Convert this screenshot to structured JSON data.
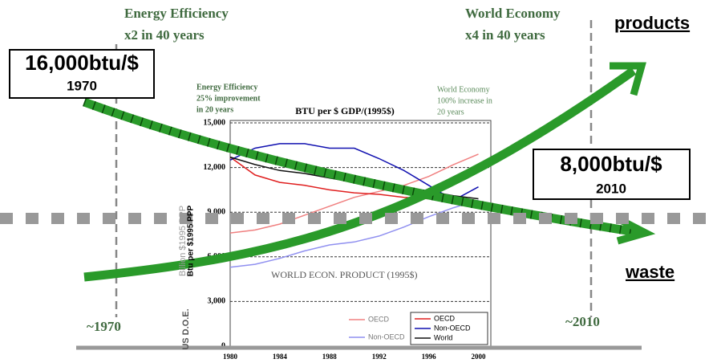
{
  "chart_data": {
    "type": "line",
    "title": "BTU per $ GDP/(1995$)",
    "x": [
      1980,
      1982,
      1984,
      1986,
      1988,
      1990,
      1992,
      1994,
      1996,
      1998,
      2000
    ],
    "xlim": [
      1980,
      2001
    ],
    "xticks": [
      1980,
      1984,
      1988,
      1992,
      1996,
      2000
    ],
    "ylim": [
      0,
      15000
    ],
    "yticks": [
      0,
      {
        "value": 3000,
        "label": "3,000"
      },
      {
        "value": 6000,
        "label": "6,000"
      },
      {
        "value": 9000,
        "label": "9,000"
      },
      {
        "value": 12000,
        "label": "12,000"
      },
      {
        "value": 15000,
        "label": "15,000"
      }
    ],
    "grid": true,
    "series": [
      {
        "name": "OECD",
        "color": "#f08080",
        "values": [
          7600,
          7800,
          8200,
          8800,
          9400,
          10000,
          10400,
          10800,
          11400,
          12200,
          12900
        ]
      },
      {
        "name": "Non-OECD",
        "color": "#9090f0",
        "values": [
          5300,
          5500,
          5900,
          6400,
          6800,
          7000,
          7400,
          8000,
          8700,
          9300,
          9800
        ]
      },
      {
        "name": "OECD",
        "color": "#e02020",
        "values": [
          12700,
          11500,
          11000,
          10800,
          10500,
          10300,
          10200,
          10000,
          9900,
          9700,
          9500
        ]
      },
      {
        "name": "Non-OECD",
        "color": "#1010b0",
        "values": [
          12500,
          13300,
          13600,
          13600,
          13300,
          13300,
          12600,
          11800,
          10800,
          9800,
          10700
        ]
      },
      {
        "name": "World",
        "color": "#111111",
        "values": [
          12700,
          12200,
          11800,
          11600,
          11300,
          11000,
          10800,
          10600,
          10400,
          10100,
          9900
        ]
      }
    ],
    "ylabel": "Billion $1995 PPP",
    "ylabel2": "Btu per $1995 PPP",
    "source": "US D.O.E.",
    "annotations": [
      "Energy Efficiency",
      "25% improvement",
      "in 20 years",
      "World Economy",
      "100% increase in",
      "20 years",
      "WORLD ECON. PRODUCT (1995$)"
    ]
  },
  "overlay": {
    "efficiency": [
      "Energy Efficiency",
      "x2 in 40 years"
    ],
    "economy": [
      "World Economy",
      "x4 in 40 years"
    ],
    "products": "products",
    "waste": "waste",
    "start": {
      "value": "16,000btu/$",
      "year": "1970"
    },
    "end": {
      "value": "8,000btu/$",
      "year": "2010"
    },
    "start_tick": "~1970",
    "end_tick": "~2010"
  }
}
